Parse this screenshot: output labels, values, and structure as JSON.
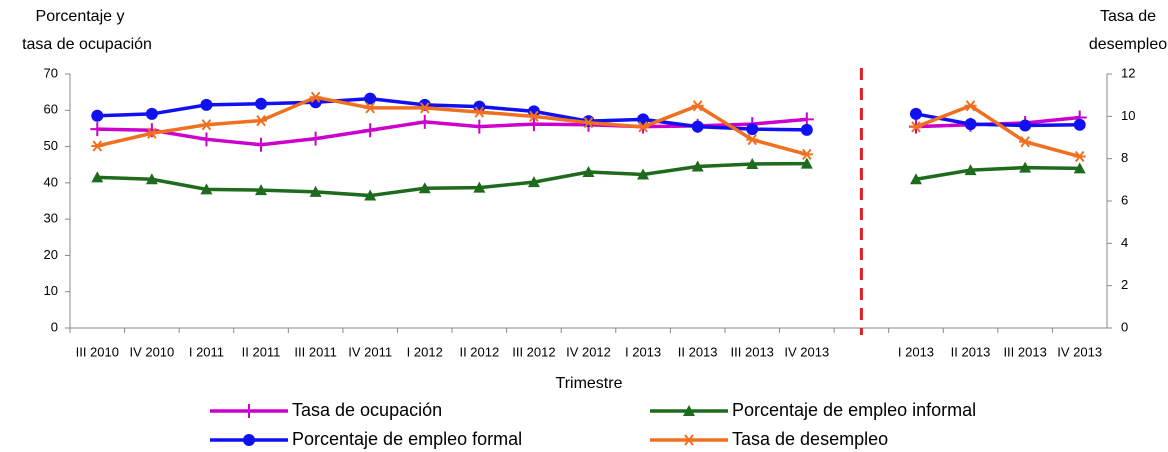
{
  "chart_data": {
    "type": "line",
    "y_label": [
      "Porcentaje y",
      "tasa de ocupación"
    ],
    "y2_label": [
      "Tasa de",
      "desempleo"
    ],
    "x_label": "Trimestre",
    "categories": [
      "III 2010",
      "IV 2010",
      "I 2011",
      "II 2011",
      "III 2011",
      "IV 2011",
      "I 2012",
      "II 2012",
      "III 2012",
      "IV 2012",
      "I 2013",
      "II 2013",
      "III 2013",
      "IV 2013",
      null,
      "I 2013",
      "II 2013",
      "III 2013",
      "IV 2013"
    ],
    "series": [
      {
        "name": "Tasa de ocupación",
        "color": "#cc00cc",
        "marker": "plus",
        "values": [
          54.8,
          54.5,
          52,
          50.5,
          52.2,
          54.5,
          56.8,
          55.5,
          56.2,
          56,
          55.5,
          55.7,
          56.2,
          57.5,
          null,
          55.5,
          56,
          56.5,
          58
        ]
      },
      {
        "name": "Porcentaje de empleo formal",
        "color": "#1010f0",
        "marker": "circle",
        "values": [
          58.5,
          59,
          61.5,
          61.8,
          62.2,
          63.2,
          61.5,
          61,
          59.7,
          57,
          57.5,
          55.5,
          54.8,
          54.6,
          null,
          59,
          56.2,
          55.8,
          56
        ]
      },
      {
        "name": "Porcentaje de empleo informal",
        "color": "#1e6b1e",
        "marker": "triangle",
        "values": [
          41.5,
          41,
          38.2,
          38,
          37.5,
          36.5,
          38.5,
          38.7,
          40.2,
          43,
          42.3,
          44.5,
          45.2,
          45.3,
          null,
          41,
          43.5,
          44.2,
          44
        ]
      },
      {
        "name": "Tasa de desempleo",
        "color": "#f07020",
        "marker": "asterisk",
        "axis": "y2",
        "values": [
          8.6,
          9.2,
          9.6,
          9.8,
          10.9,
          10.4,
          10.4,
          10.2,
          10,
          9.7,
          9.5,
          10.5,
          8.9,
          8.2,
          null,
          9.5,
          10.5,
          8.8,
          8.1
        ]
      }
    ],
    "ylim": [
      0,
      70
    ],
    "yticks": [
      0,
      10,
      20,
      30,
      40,
      50,
      60,
      70
    ],
    "y2lim": [
      0,
      12
    ],
    "y2ticks": [
      0,
      2,
      4,
      6,
      8,
      10,
      12
    ],
    "grid": false
  }
}
